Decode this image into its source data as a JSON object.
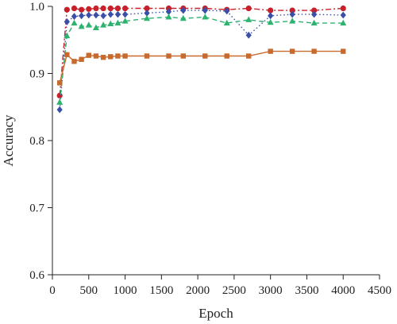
{
  "chart_data": {
    "type": "line",
    "title": "",
    "xlabel": "Epoch",
    "ylabel": "Accuracy",
    "xlim": [
      0,
      4500
    ],
    "ylim": [
      0.6,
      1.0
    ],
    "x_ticks": [
      0,
      500,
      1000,
      1500,
      2000,
      2500,
      3000,
      3500,
      4000,
      4500
    ],
    "y_ticks": [
      0.6,
      0.7,
      0.8,
      0.9,
      1.0
    ],
    "x_tick_labels": [
      "0",
      "500",
      "1000",
      "1500",
      "2000",
      "2500",
      "3000",
      "3500",
      "4000",
      "4500"
    ],
    "y_tick_labels": [
      "0.6",
      "0.7",
      "0.8",
      "0.9",
      "1.0"
    ],
    "grid": false,
    "legend": "none",
    "series": [
      {
        "color": "#c8202a",
        "marker": "circle",
        "line_style": "dash-dot",
        "x": [
          100,
          200,
          300,
          400,
          500,
          600,
          700,
          800,
          900,
          1000,
          1300,
          1600,
          1800,
          2100,
          2400,
          2700,
          3000,
          3300,
          3600,
          4000
        ],
        "y": [
          0.867,
          0.995,
          0.997,
          0.995,
          0.996,
          0.997,
          0.997,
          0.997,
          0.997,
          0.997,
          0.997,
          0.997,
          0.997,
          0.997,
          0.995,
          0.997,
          0.994,
          0.994,
          0.994,
          0.997
        ]
      },
      {
        "color": "#3a4fa8",
        "marker": "diamond",
        "line_style": "dotted",
        "x": [
          100,
          200,
          300,
          400,
          500,
          600,
          700,
          800,
          900,
          1000,
          1300,
          1600,
          1800,
          2100,
          2400,
          2700,
          3000,
          3300,
          3600,
          4000
        ],
        "y": [
          0.846,
          0.977,
          0.985,
          0.986,
          0.987,
          0.987,
          0.986,
          0.988,
          0.988,
          0.988,
          0.99,
          0.992,
          0.994,
          0.994,
          0.993,
          0.957,
          0.986,
          0.988,
          0.988,
          0.987
        ]
      },
      {
        "color": "#2db36f",
        "marker": "triangle",
        "line_style": "dashed",
        "x": [
          100,
          200,
          300,
          400,
          500,
          600,
          700,
          800,
          900,
          1000,
          1300,
          1600,
          1800,
          2100,
          2400,
          2700,
          3000,
          3300,
          3600,
          4000
        ],
        "y": [
          0.857,
          0.956,
          0.975,
          0.97,
          0.972,
          0.968,
          0.972,
          0.974,
          0.975,
          0.978,
          0.982,
          0.984,
          0.982,
          0.984,
          0.975,
          0.98,
          0.976,
          0.978,
          0.975,
          0.975
        ]
      },
      {
        "color": "#c86a2e",
        "marker": "square",
        "line_style": "solid",
        "x": [
          100,
          200,
          300,
          400,
          500,
          600,
          700,
          800,
          900,
          1000,
          1300,
          1600,
          1800,
          2100,
          2400,
          2700,
          3000,
          3300,
          3600,
          4000
        ],
        "y": [
          0.886,
          0.928,
          0.918,
          0.921,
          0.927,
          0.926,
          0.924,
          0.925,
          0.926,
          0.926,
          0.926,
          0.926,
          0.926,
          0.926,
          0.926,
          0.926,
          0.933,
          0.933,
          0.933,
          0.933
        ]
      }
    ]
  }
}
